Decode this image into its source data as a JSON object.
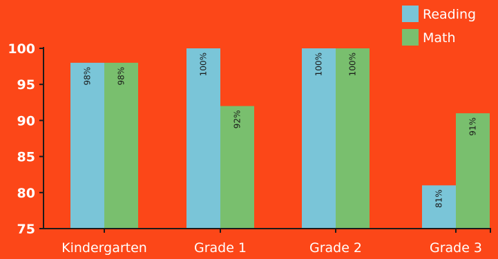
{
  "chart_data": {
    "type": "bar",
    "categories": [
      "Kindergarten",
      "Grade 1",
      "Grade 2",
      "Grade 3"
    ],
    "series": [
      {
        "name": "Reading",
        "values": [
          98,
          100,
          100,
          81
        ],
        "labels": [
          "98%",
          "100%",
          "100%",
          "81%"
        ],
        "color": "#7ac5d8"
      },
      {
        "name": "Math",
        "values": [
          98,
          92,
          100,
          91
        ],
        "labels": [
          "98%",
          "92%",
          "100%",
          "91%"
        ],
        "color": "#79bf6e"
      }
    ],
    "ylim": [
      75,
      100
    ],
    "yticks": [
      75,
      80,
      85,
      90,
      95,
      100
    ],
    "grid": false,
    "legend_position": "top-right",
    "title": "",
    "xlabel": "",
    "ylabel": ""
  },
  "colors": {
    "background": "#fc4718",
    "axis": "#1a1a1a",
    "text": "#ffffff",
    "data_label": "#1a1a1a"
  }
}
